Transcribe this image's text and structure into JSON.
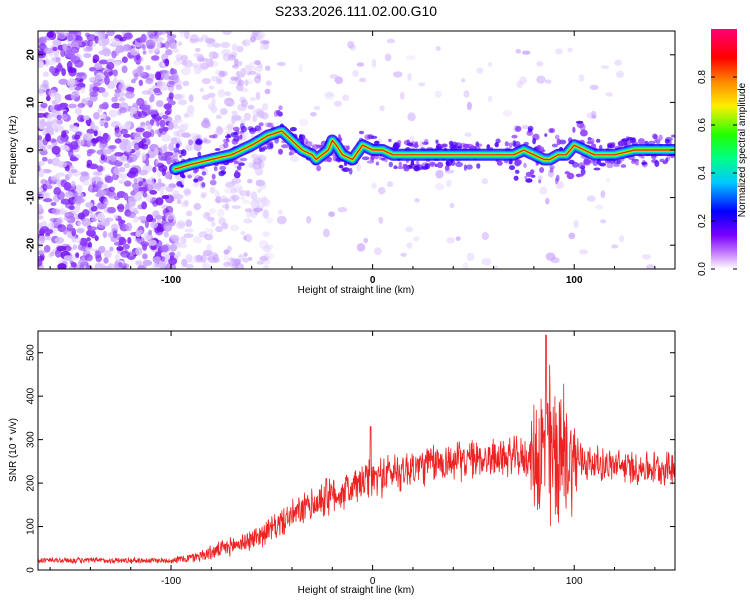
{
  "title": "S233.2026.111.02.00.G10",
  "chart_data": [
    {
      "type": "heatmap",
      "name": "spectrogram",
      "xlabel": "Height of straight line (km)",
      "ylabel": "Frequency (Hz)",
      "xlim": [
        -166,
        150
      ],
      "ylim": [
        -25,
        25
      ],
      "xticks": [
        -100,
        0,
        100
      ],
      "xtick_labels": [
        "-100",
        "0",
        "100"
      ],
      "yticks": [
        -20,
        -10,
        0,
        10,
        20
      ],
      "ytick_labels": [
        "-20",
        "-10",
        "0",
        "10",
        "20"
      ],
      "colorbar": {
        "label": "Normalized spectral amplitude",
        "range": [
          0,
          1
        ],
        "ticks": [
          0.0,
          0.2,
          0.4,
          0.6,
          0.8
        ],
        "tick_labels": [
          "0.0",
          "0.2",
          "0.4",
          "0.6",
          "0.8"
        ],
        "colormap": "rainbow (white-violet-blue-cyan-green-yellow-orange-red-magenta)"
      },
      "ridge": {
        "x": [
          -98,
          -90,
          -80,
          -70,
          -60,
          -52,
          -45,
          -40,
          -35,
          -30,
          -28,
          -25,
          -22,
          -20,
          -18,
          -15,
          -10,
          -5,
          0,
          5,
          10,
          20,
          30,
          40,
          50,
          60,
          70,
          75,
          80,
          85,
          88,
          92,
          96,
          100,
          105,
          110,
          120,
          130,
          140,
          150
        ],
        "y": [
          -4,
          -3,
          -2,
          -1,
          1,
          3,
          4,
          2,
          0,
          -1,
          -2,
          -1,
          0,
          2,
          1,
          -1,
          -2,
          1,
          0,
          0,
          -1,
          -1,
          -1,
          -1,
          -1,
          -1,
          -1,
          0,
          -1,
          -2,
          -2,
          -1,
          -1,
          1,
          0,
          -1,
          -1,
          0,
          0,
          0
        ]
      }
    },
    {
      "type": "line",
      "name": "snr",
      "xlabel": "Height of straight line (km)",
      "ylabel": "SNR (10 * v/v)",
      "xlim": [
        -166,
        150
      ],
      "ylim": [
        0,
        550
      ],
      "xticks": [
        -100,
        0,
        100
      ],
      "xtick_labels": [
        "-100",
        "0",
        "100"
      ],
      "yticks": [
        0,
        100,
        200,
        300,
        400,
        500
      ],
      "ytick_labels": [
        "0",
        "100",
        "200",
        "300",
        "400",
        "500"
      ],
      "color": "#ee2222",
      "envelope": {
        "x": [
          -166,
          -120,
          -100,
          -90,
          -80,
          -70,
          -60,
          -50,
          -40,
          -30,
          -20,
          -10,
          0,
          10,
          20,
          30,
          40,
          50,
          60,
          70,
          75,
          80,
          85,
          90,
          95,
          100,
          105,
          110,
          120,
          130,
          140,
          150
        ],
        "y": [
          22,
          22,
          22,
          28,
          40,
          55,
          70,
          95,
          125,
          150,
          170,
          190,
          210,
          225,
          235,
          245,
          250,
          255,
          258,
          260,
          258,
          260,
          265,
          265,
          262,
          255,
          250,
          245,
          240,
          235,
          235,
          235
        ]
      },
      "noise": {
        "x": [
          -166,
          -100,
          -80,
          -60,
          -40,
          -20,
          0,
          20,
          60,
          78,
          80,
          84,
          88,
          92,
          96,
          100,
          104,
          110,
          150
        ],
        "amplitude": [
          8,
          8,
          20,
          30,
          40,
          50,
          55,
          55,
          50,
          55,
          150,
          220,
          240,
          220,
          180,
          120,
          60,
          45,
          45
        ]
      },
      "peaks": [
        {
          "x": -23,
          "y": 210
        },
        {
          "x": -1,
          "y": 330
        },
        {
          "x": 86,
          "y": 540
        }
      ]
    }
  ],
  "colors": {
    "background": "#ffffff",
    "axis": "#000000",
    "snr_line": "#ee2222"
  }
}
